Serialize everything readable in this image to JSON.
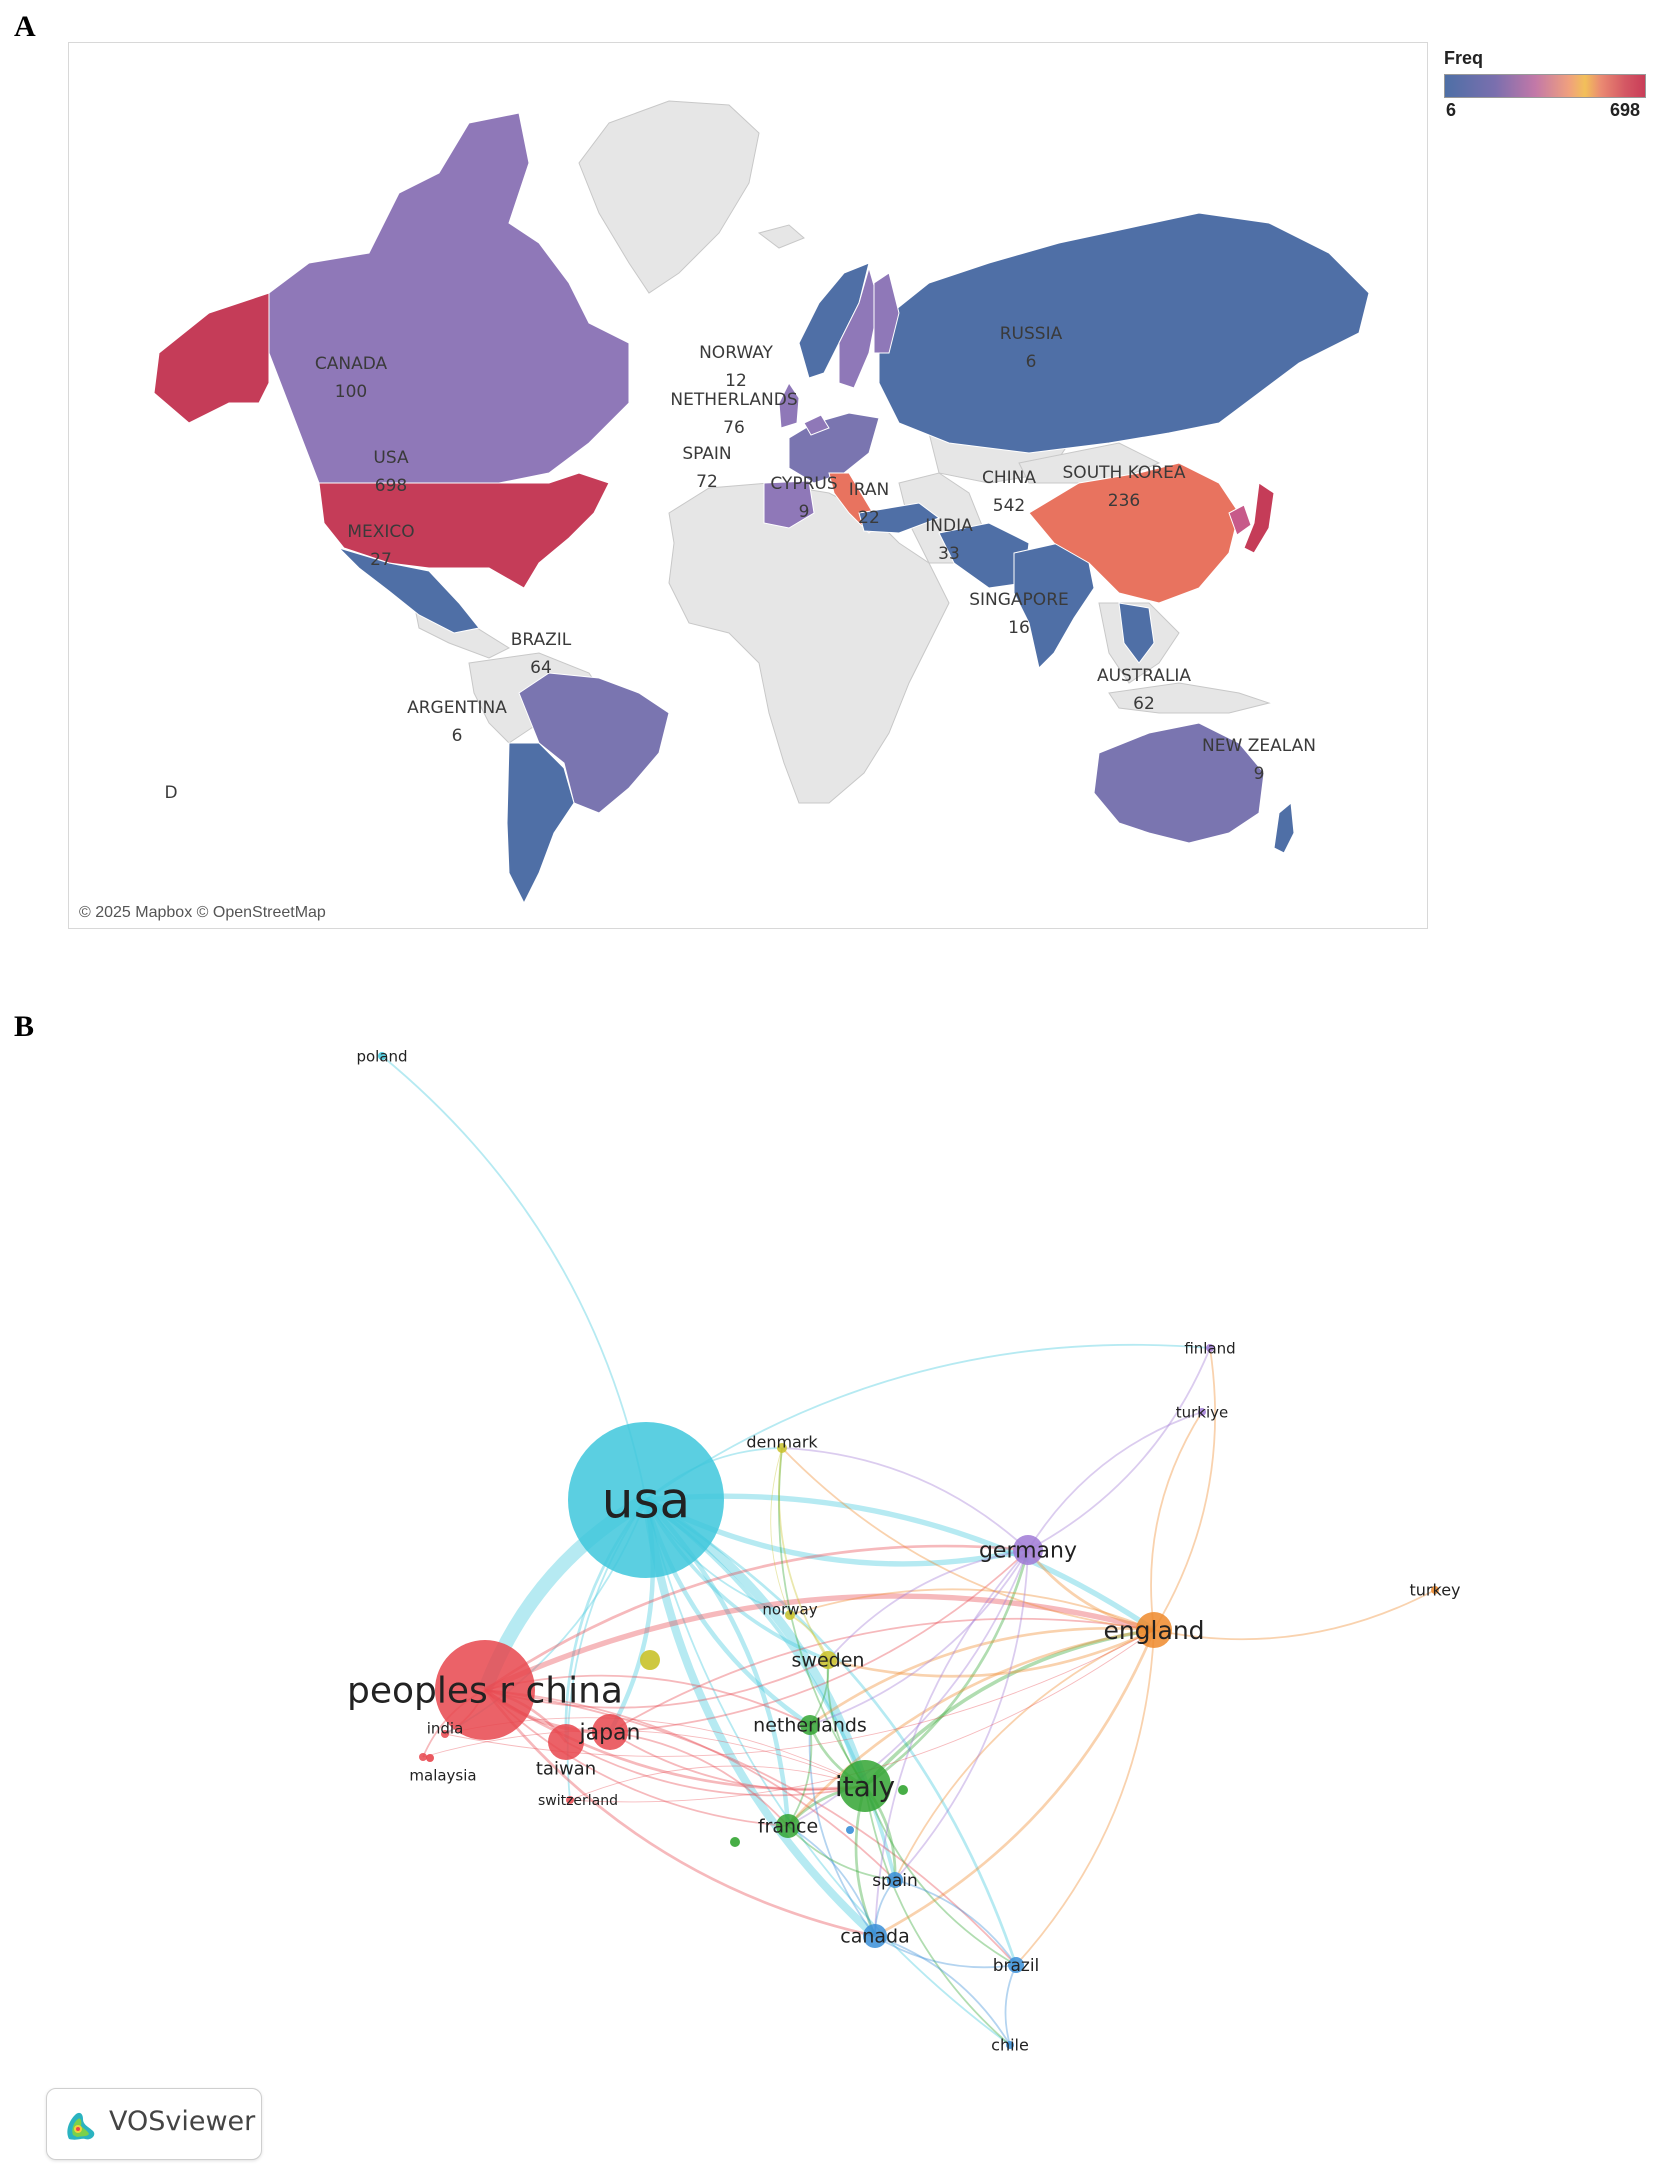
{
  "panel_a": {
    "letter": "A",
    "credit": "© 2025 Mapbox © OpenStreetMap",
    "stray_label": "D",
    "legend": {
      "title": "Freq",
      "min": "6",
      "max": "698"
    },
    "colors": {
      "no_data": "#e6e6e6",
      "low": "#4f6fa6",
      "mid": "#8f78b8",
      "high": "#c53c58",
      "china": "#e8735f"
    },
    "countries": [
      {
        "key": "usa",
        "name": "USA",
        "value": "698"
      },
      {
        "key": "china",
        "name": "CHINA",
        "value": "542"
      },
      {
        "key": "south_korea",
        "name": "SOUTH KOREA",
        "value": "236"
      },
      {
        "key": "canada",
        "name": "CANADA",
        "value": "100"
      },
      {
        "key": "netherlands",
        "name": "NETHERLANDS",
        "value": "76"
      },
      {
        "key": "spain",
        "name": "SPAIN",
        "value": "72"
      },
      {
        "key": "brazil",
        "name": "BRAZIL",
        "value": "64"
      },
      {
        "key": "australia",
        "name": "AUSTRALIA",
        "value": "62"
      },
      {
        "key": "india",
        "name": "INDIA",
        "value": "33"
      },
      {
        "key": "mexico",
        "name": "MEXICO",
        "value": "27"
      },
      {
        "key": "iran",
        "name": "IRAN",
        "value": "22"
      },
      {
        "key": "singapore",
        "name": "SINGAPORE",
        "value": "16"
      },
      {
        "key": "norway",
        "name": "NORWAY",
        "value": "12"
      },
      {
        "key": "cyprus",
        "name": "CYPRUS",
        "value": "9"
      },
      {
        "key": "new_zealand",
        "name": "NEW ZEALAN",
        "value": "9"
      },
      {
        "key": "russia",
        "name": "RUSSIA",
        "value": "6"
      },
      {
        "key": "argentina",
        "name": "ARGENTINA",
        "value": "6"
      }
    ]
  },
  "panel_b": {
    "letter": "B",
    "software": "VOSviewer",
    "nodes": [
      {
        "key": "usa",
        "label": "usa",
        "cluster": "cyan"
      },
      {
        "key": "china",
        "label": "peoples r china",
        "cluster": "red"
      },
      {
        "key": "japan",
        "label": "japan",
        "cluster": "red"
      },
      {
        "key": "taiwan",
        "label": "taiwan",
        "cluster": "red"
      },
      {
        "key": "india",
        "label": "india",
        "cluster": "red"
      },
      {
        "key": "malaysia",
        "label": "malaysia",
        "cluster": "red"
      },
      {
        "key": "switzerland",
        "label": "switzerland",
        "cluster": "red"
      },
      {
        "key": "italy",
        "label": "italy",
        "cluster": "green"
      },
      {
        "key": "netherlands",
        "label": "netherlands",
        "cluster": "green"
      },
      {
        "key": "france",
        "label": "france",
        "cluster": "green"
      },
      {
        "key": "sweden",
        "label": "sweden",
        "cluster": "yellow"
      },
      {
        "key": "norway",
        "label": "norway",
        "cluster": "yellow"
      },
      {
        "key": "denmark",
        "label": "denmark",
        "cluster": "yellow"
      },
      {
        "key": "germany",
        "label": "germany",
        "cluster": "purple"
      },
      {
        "key": "finland",
        "label": "finland",
        "cluster": "purple"
      },
      {
        "key": "turkiye",
        "label": "turkiye",
        "cluster": "purple"
      },
      {
        "key": "england",
        "label": "england",
        "cluster": "orange"
      },
      {
        "key": "turkey",
        "label": "turkey",
        "cluster": "orange"
      },
      {
        "key": "canada",
        "label": "canada",
        "cluster": "blue"
      },
      {
        "key": "spain",
        "label": "spain",
        "cluster": "blue"
      },
      {
        "key": "brazil",
        "label": "brazil",
        "cluster": "blue"
      },
      {
        "key": "chile",
        "label": "chile",
        "cluster": "blue"
      },
      {
        "key": "poland",
        "label": "poland",
        "cluster": "cyan"
      }
    ],
    "cluster_colors": {
      "cyan": "#3ec7dc",
      "red": "#e8464e",
      "green": "#33a532",
      "yellow": "#c9c22a",
      "purple": "#a07ad6",
      "orange": "#ef8a2b",
      "blue": "#3a8fd8"
    }
  }
}
